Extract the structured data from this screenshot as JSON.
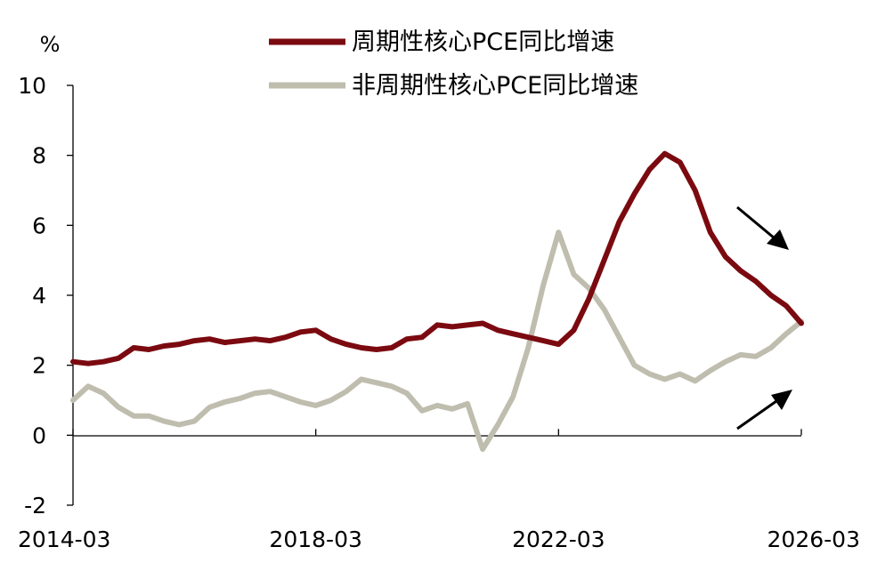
{
  "chart_data": {
    "type": "line",
    "title": "",
    "xlabel": "",
    "ylabel": "%",
    "ylim": [
      -2,
      10
    ],
    "y_ticks": [
      "10",
      "8",
      "6",
      "4",
      "2",
      "0",
      "-2"
    ],
    "x_ticks": [
      "2014-03",
      "2018-03",
      "2022-03",
      "2026-03"
    ],
    "grid": false,
    "legend_position": "top",
    "colors": {
      "cyclical": "#7b0a10",
      "acyclical": "#bfbdae",
      "arrow": "#000000"
    },
    "series": [
      {
        "name": "周期性核心PCE同比增速",
        "points": [
          [
            "2014-03",
            2.1
          ],
          [
            "2014-06",
            2.05
          ],
          [
            "2014-09",
            2.1
          ],
          [
            "2014-12",
            2.2
          ],
          [
            "2015-03",
            2.5
          ],
          [
            "2015-06",
            2.45
          ],
          [
            "2015-09",
            2.55
          ],
          [
            "2015-12",
            2.6
          ],
          [
            "2016-03",
            2.7
          ],
          [
            "2016-06",
            2.75
          ],
          [
            "2016-09",
            2.65
          ],
          [
            "2016-12",
            2.7
          ],
          [
            "2017-03",
            2.75
          ],
          [
            "2017-06",
            2.7
          ],
          [
            "2017-09",
            2.8
          ],
          [
            "2017-12",
            2.95
          ],
          [
            "2018-03",
            3.0
          ],
          [
            "2018-06",
            2.75
          ],
          [
            "2018-09",
            2.6
          ],
          [
            "2018-12",
            2.5
          ],
          [
            "2019-03",
            2.45
          ],
          [
            "2019-06",
            2.5
          ],
          [
            "2019-09",
            2.75
          ],
          [
            "2019-12",
            2.8
          ],
          [
            "2020-03",
            3.15
          ],
          [
            "2020-06",
            3.1
          ],
          [
            "2020-09",
            3.15
          ],
          [
            "2020-12",
            3.2
          ],
          [
            "2021-03",
            3.0
          ],
          [
            "2021-06",
            2.9
          ],
          [
            "2021-09",
            2.8
          ],
          [
            "2021-12",
            2.7
          ],
          [
            "2022-03",
            2.6
          ],
          [
            "2022-06",
            3.0
          ],
          [
            "2022-09",
            3.9
          ],
          [
            "2022-12",
            5.0
          ],
          [
            "2023-03",
            6.1
          ],
          [
            "2023-06",
            6.9
          ],
          [
            "2023-09",
            7.6
          ],
          [
            "2023-12",
            8.05
          ],
          [
            "2024-03",
            7.8
          ],
          [
            "2024-06",
            7.0
          ],
          [
            "2024-09",
            5.8
          ],
          [
            "2024-12",
            5.1
          ],
          [
            "2025-03",
            4.7
          ],
          [
            "2025-06",
            4.4
          ],
          [
            "2025-09",
            4.0
          ],
          [
            "2025-12",
            3.7
          ],
          [
            "2026-03",
            3.2
          ]
        ]
      },
      {
        "name": "非周期性核心PCE同比增速",
        "points": [
          [
            "2014-03",
            1.0
          ],
          [
            "2014-06",
            1.4
          ],
          [
            "2014-09",
            1.2
          ],
          [
            "2014-12",
            0.8
          ],
          [
            "2015-03",
            0.55
          ],
          [
            "2015-06",
            0.55
          ],
          [
            "2015-09",
            0.4
          ],
          [
            "2015-12",
            0.3
          ],
          [
            "2016-03",
            0.4
          ],
          [
            "2016-06",
            0.8
          ],
          [
            "2016-09",
            0.95
          ],
          [
            "2016-12",
            1.05
          ],
          [
            "2017-03",
            1.2
          ],
          [
            "2017-06",
            1.25
          ],
          [
            "2017-09",
            1.1
          ],
          [
            "2017-12",
            0.95
          ],
          [
            "2018-03",
            0.85
          ],
          [
            "2018-06",
            1.0
          ],
          [
            "2018-09",
            1.25
          ],
          [
            "2018-12",
            1.6
          ],
          [
            "2019-03",
            1.5
          ],
          [
            "2019-06",
            1.4
          ],
          [
            "2019-09",
            1.2
          ],
          [
            "2019-12",
            0.7
          ],
          [
            "2020-03",
            0.85
          ],
          [
            "2020-06",
            0.75
          ],
          [
            "2020-09",
            0.9
          ],
          [
            "2020-12",
            -0.4
          ],
          [
            "2021-03",
            0.3
          ],
          [
            "2021-06",
            1.1
          ],
          [
            "2021-09",
            2.5
          ],
          [
            "2021-12",
            4.3
          ],
          [
            "2022-03",
            5.8
          ],
          [
            "2022-06",
            4.6
          ],
          [
            "2022-09",
            4.2
          ],
          [
            "2022-12",
            3.6
          ],
          [
            "2023-03",
            2.8
          ],
          [
            "2023-06",
            2.0
          ],
          [
            "2023-09",
            1.75
          ],
          [
            "2023-12",
            1.6
          ],
          [
            "2024-03",
            1.75
          ],
          [
            "2024-06",
            1.55
          ],
          [
            "2024-09",
            1.85
          ],
          [
            "2024-12",
            2.1
          ],
          [
            "2025-03",
            2.3
          ],
          [
            "2025-06",
            2.25
          ],
          [
            "2025-09",
            2.5
          ],
          [
            "2025-12",
            2.9
          ],
          [
            "2026-03",
            3.25
          ]
        ]
      }
    ],
    "annotations": [
      {
        "type": "arrow",
        "direction": "down-right",
        "near": "cyclical series end"
      },
      {
        "type": "arrow",
        "direction": "up-right",
        "near": "acyclical series end"
      }
    ]
  }
}
